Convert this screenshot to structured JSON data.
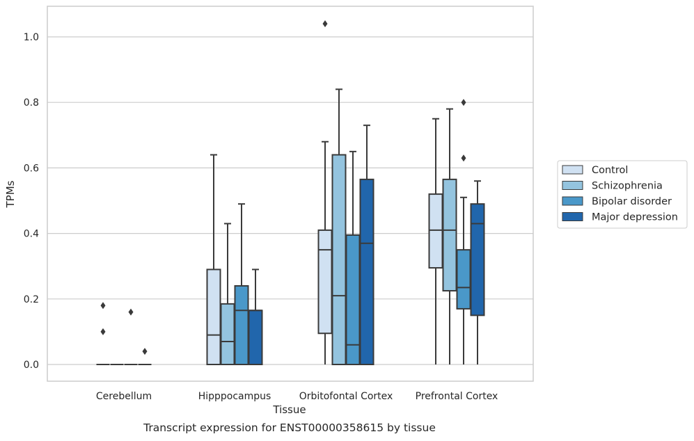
{
  "chart_data": {
    "type": "box",
    "title": "",
    "xlabel": "Tissue",
    "ylabel": "TPMs",
    "caption": "Transcript expression for ENST00000358615 by tissue",
    "ylim": [
      -0.05,
      1.09
    ],
    "yticks": [
      0.0,
      0.2,
      0.4,
      0.6,
      0.8,
      1.0
    ],
    "ytick_labels": [
      "0.0",
      "0.2",
      "0.4",
      "0.6",
      "0.8",
      "1.0"
    ],
    "grid": true,
    "legend_position": "right",
    "categories": [
      "Cerebellum",
      "Hipppocampus",
      "Orbitofontal Cortex",
      "Prefrontal Cortex"
    ],
    "series": [
      {
        "name": "Control",
        "color": "#d0e1f2",
        "boxes": [
          {
            "q1": 0.0,
            "median": 0.0,
            "q3": 0.0,
            "whisker_low": 0.0,
            "whisker_high": 0.0,
            "outliers": [
              0.18,
              0.1
            ]
          },
          {
            "q1": 0.0,
            "median": 0.09,
            "q3": 0.29,
            "whisker_low": 0.0,
            "whisker_high": 0.64,
            "outliers": []
          },
          {
            "q1": 0.095,
            "median": 0.35,
            "q3": 0.41,
            "whisker_low": 0.0,
            "whisker_high": 0.68,
            "outliers": [
              1.04
            ]
          },
          {
            "q1": 0.295,
            "median": 0.41,
            "q3": 0.52,
            "whisker_low": 0.0,
            "whisker_high": 0.75,
            "outliers": []
          }
        ]
      },
      {
        "name": "Schizophrenia",
        "color": "#94c4df",
        "boxes": [
          {
            "q1": 0.0,
            "median": 0.0,
            "q3": 0.0,
            "whisker_low": 0.0,
            "whisker_high": 0.0,
            "outliers": []
          },
          {
            "q1": 0.0,
            "median": 0.07,
            "q3": 0.185,
            "whisker_low": 0.0,
            "whisker_high": 0.43,
            "outliers": []
          },
          {
            "q1": 0.0,
            "median": 0.21,
            "q3": 0.64,
            "whisker_low": 0.0,
            "whisker_high": 0.84,
            "outliers": []
          },
          {
            "q1": 0.225,
            "median": 0.41,
            "q3": 0.565,
            "whisker_low": 0.0,
            "whisker_high": 0.78,
            "outliers": []
          }
        ]
      },
      {
        "name": "Bipolar disorder",
        "color": "#4a98c9",
        "boxes": [
          {
            "q1": 0.0,
            "median": 0.0,
            "q3": 0.0,
            "whisker_low": 0.0,
            "whisker_high": 0.0,
            "outliers": [
              0.16
            ]
          },
          {
            "q1": 0.0,
            "median": 0.165,
            "q3": 0.24,
            "whisker_low": 0.0,
            "whisker_high": 0.49,
            "outliers": []
          },
          {
            "q1": 0.0,
            "median": 0.06,
            "q3": 0.395,
            "whisker_low": 0.0,
            "whisker_high": 0.65,
            "outliers": []
          },
          {
            "q1": 0.17,
            "median": 0.235,
            "q3": 0.35,
            "whisker_low": 0.0,
            "whisker_high": 0.51,
            "outliers": [
              0.63,
              0.8
            ]
          }
        ]
      },
      {
        "name": "Major depression",
        "color": "#2166ac",
        "boxes": [
          {
            "q1": 0.0,
            "median": 0.0,
            "q3": 0.0,
            "whisker_low": 0.0,
            "whisker_high": 0.0,
            "outliers": [
              0.04
            ]
          },
          {
            "q1": 0.0,
            "median": 0.165,
            "q3": 0.165,
            "whisker_low": 0.0,
            "whisker_high": 0.29,
            "outliers": []
          },
          {
            "q1": 0.0,
            "median": 0.37,
            "q3": 0.565,
            "whisker_low": 0.0,
            "whisker_high": 0.73,
            "outliers": []
          },
          {
            "q1": 0.15,
            "median": 0.43,
            "q3": 0.49,
            "whisker_low": 0.0,
            "whisker_high": 0.56,
            "outliers": []
          }
        ]
      }
    ],
    "colors": {
      "grid": "#cccccc",
      "frame": "#cccccc",
      "line": "#3a3a3a"
    }
  }
}
